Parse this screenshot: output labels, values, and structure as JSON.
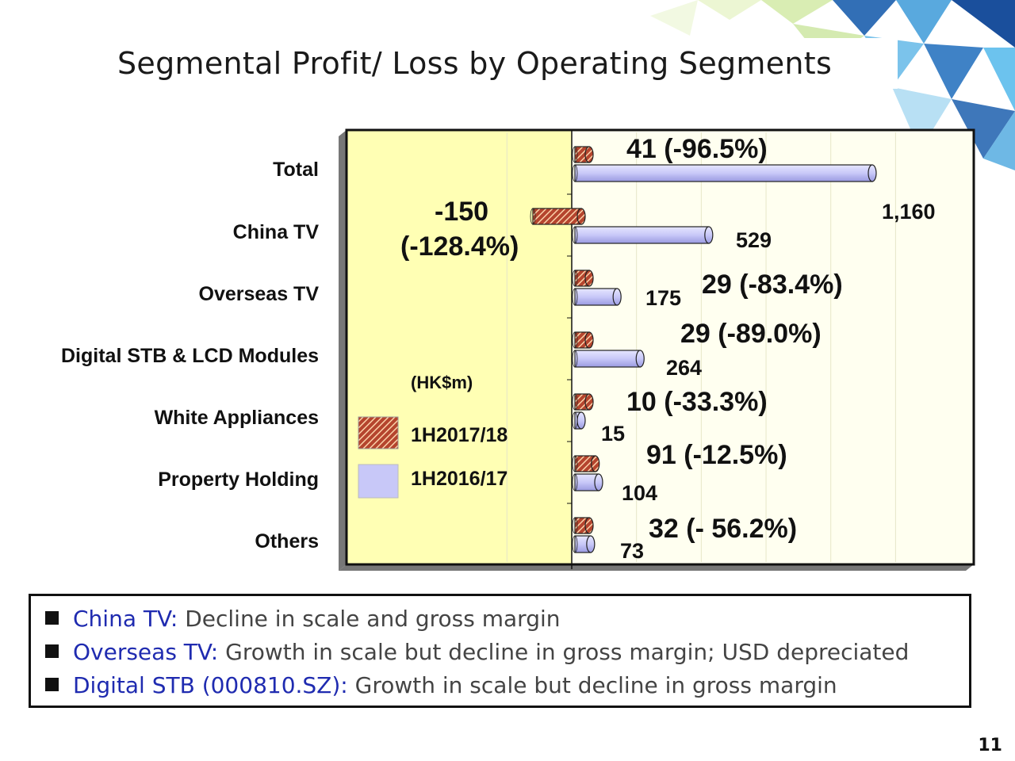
{
  "slide": {
    "title": "Segmental Profit/ Loss by Operating Segments",
    "page_number": "11"
  },
  "chart_data": {
    "type": "bar",
    "orientation": "horizontal",
    "unit_label": "(HK$m)",
    "categories": [
      "Total",
      "China TV",
      "Overseas TV",
      "Digital STB & LCD Modules",
      "White Appliances",
      "Property Holding",
      "Others"
    ],
    "series": [
      {
        "name": "1H2017/18",
        "values": [
          41,
          -150,
          29,
          29,
          10,
          91,
          32
        ],
        "color": "#b5452e"
      },
      {
        "name": "1H2016/17",
        "values": [
          1160,
          529,
          175,
          264,
          15,
          104,
          73
        ],
        "color": "#c8c8f8"
      }
    ],
    "current_labels": [
      "41 (-96.5%)",
      "-150",
      "29 (-83.4%)",
      "29 (-89.0%)",
      "10 (-33.3%)",
      "91 (-12.5%)",
      "32 (- 56.2%)"
    ],
    "current_label_extra": {
      "china_tv": "(-128.4%)"
    },
    "prior_labels": [
      "1,160",
      "529",
      "175",
      "264",
      "15",
      "104",
      "73"
    ],
    "xlim": [
      -400,
      1300
    ],
    "legend": [
      {
        "name": "1H2017/18"
      },
      {
        "name": "1H2016/17"
      }
    ]
  },
  "notes": [
    {
      "key": "China TV",
      "sep": ":",
      "desc": " Decline in scale and gross margin"
    },
    {
      "key": "Overseas TV",
      "sep": ":",
      "desc": " Growth in scale but decline in gross margin; USD depreciated"
    },
    {
      "key": "Digital STB (000810.SZ)",
      "sep": ":",
      "desc": " Growth in scale but decline in gross margin"
    }
  ],
  "colors": {
    "current_bar": "#b5452e",
    "prior_bar": "#c8c8f8",
    "plot_left_bg": "#ffffb4",
    "plot_right_bg": "#fffff0",
    "note_key": "#1f2bb0"
  }
}
